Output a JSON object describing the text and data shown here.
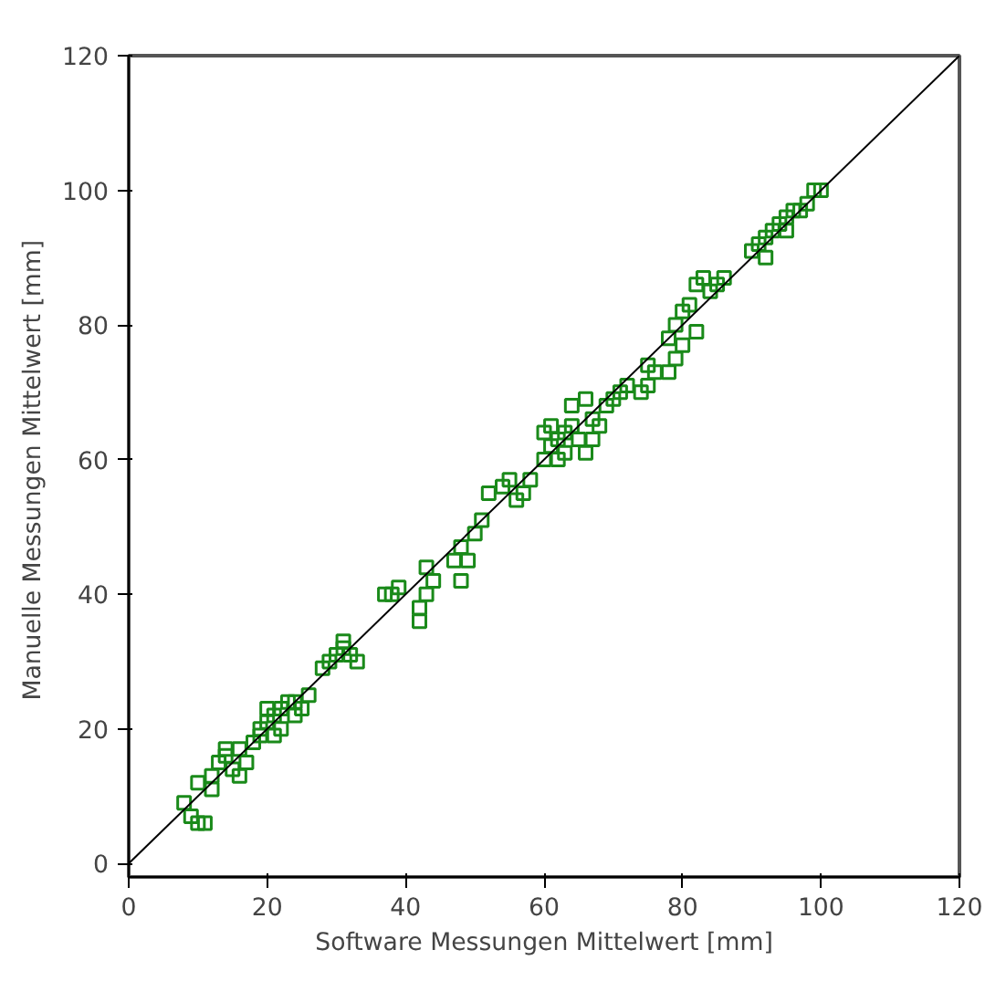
{
  "chart_data": {
    "type": "scatter",
    "xlabel": "Software Messungen Mittelwert [mm]",
    "ylabel": "Manuelle Messungen Mittelwert  [mm]",
    "xlim": [
      0,
      120
    ],
    "ylim": [
      -2,
      120
    ],
    "xticks": [
      0,
      20,
      40,
      60,
      80,
      100,
      120
    ],
    "yticks": [
      0,
      20,
      40,
      60,
      80,
      100,
      120
    ],
    "grid": false,
    "series": [
      {
        "marker": "square",
        "color": "#1a8a1a",
        "x": [
          8,
          9,
          10,
          11,
          10,
          12,
          13,
          14,
          15,
          16,
          17,
          18,
          14,
          19,
          16,
          12,
          20,
          21,
          22,
          23,
          24,
          25,
          20,
          22,
          21,
          26,
          24,
          19,
          29,
          30,
          31,
          32,
          33,
          28,
          31,
          37,
          38,
          39,
          42,
          43,
          42,
          44,
          43,
          47,
          48,
          49,
          48,
          50,
          51,
          52,
          54,
          55,
          56,
          58,
          57,
          60,
          61,
          62,
          63,
          64,
          62,
          63,
          65,
          60,
          61,
          64,
          66,
          67,
          68,
          69,
          70,
          71,
          66,
          72,
          67,
          74,
          75,
          75,
          76,
          78,
          79,
          80,
          78,
          79,
          80,
          81,
          82,
          83,
          85,
          86,
          84,
          82,
          90,
          91,
          92,
          93,
          94,
          95,
          96,
          95,
          97,
          98,
          99,
          100,
          92
        ],
        "values": [
          9,
          7,
          6,
          6,
          12,
          13,
          15,
          16,
          14,
          17,
          15,
          18,
          17,
          19,
          13,
          11,
          21,
          22,
          23,
          24,
          22,
          23,
          23,
          20,
          19,
          25,
          24,
          20,
          30,
          31,
          32,
          31,
          30,
          29,
          33,
          40,
          40,
          41,
          38,
          40,
          36,
          42,
          44,
          45,
          47,
          45,
          42,
          49,
          51,
          55,
          56,
          57,
          54,
          57,
          55,
          60,
          62,
          63,
          64,
          65,
          60,
          61,
          63,
          64,
          65,
          68,
          61,
          66,
          65,
          68,
          69,
          70,
          69,
          71,
          63,
          70,
          71,
          74,
          73,
          73,
          75,
          77,
          78,
          80,
          82,
          83,
          86,
          87,
          86,
          87,
          85,
          79,
          91,
          92,
          93,
          94,
          95,
          96,
          97,
          94,
          97,
          98,
          100,
          100,
          90
        ]
      },
      {
        "type": "line",
        "color": "#000000",
        "line_style": "solid",
        "x": [
          0,
          120
        ],
        "values": [
          0,
          120
        ]
      }
    ]
  }
}
